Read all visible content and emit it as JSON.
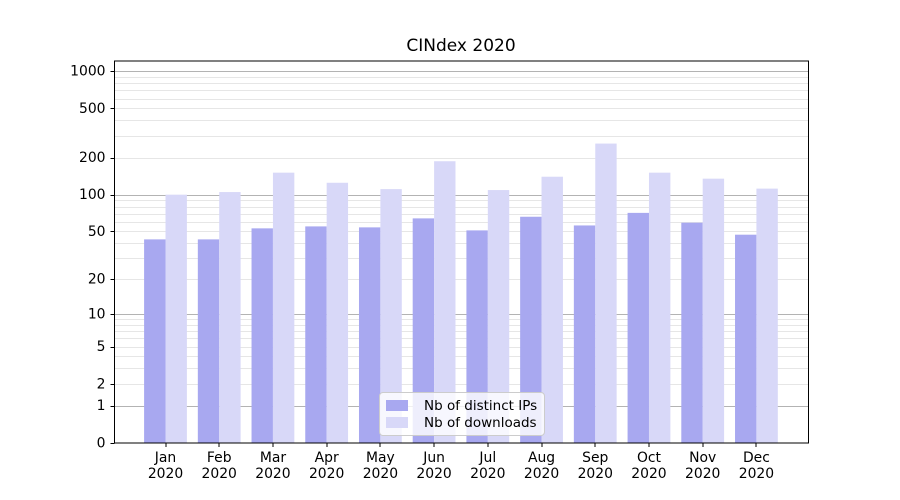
{
  "title": "CINdex 2020",
  "chart_data": {
    "type": "bar",
    "title": "CINdex 2020",
    "xlabel": "",
    "ylabel": "",
    "yscale": "log1p",
    "grid": "both",
    "legend_position": "lower center",
    "categories": [
      "Jan",
      "Feb",
      "Mar",
      "Apr",
      "May",
      "Jun",
      "Jul",
      "Aug",
      "Sep",
      "Oct",
      "Nov",
      "Dec"
    ],
    "year_label": "2020",
    "series": [
      {
        "name": "Nb of distinct IPs",
        "color": "#a8a8f0",
        "values": [
          43,
          43,
          53,
          55,
          54,
          64,
          51,
          66,
          56,
          71,
          59,
          47
        ]
      },
      {
        "name": "Nb of downloads",
        "color": "#d8d8f8",
        "values": [
          100,
          105,
          151,
          125,
          111,
          187,
          109,
          140,
          260,
          151,
          135,
          112
        ]
      }
    ],
    "yticks": [
      0,
      1,
      2,
      5,
      10,
      20,
      50,
      100,
      200,
      500,
      1000
    ],
    "major_grid_values": [
      1,
      10,
      100,
      1000
    ],
    "ylim": [
      0,
      1210
    ],
    "axis_color": "#000000",
    "major_grid_color": "#b3b3b3",
    "minor_grid_color": "#e6e6e6"
  }
}
